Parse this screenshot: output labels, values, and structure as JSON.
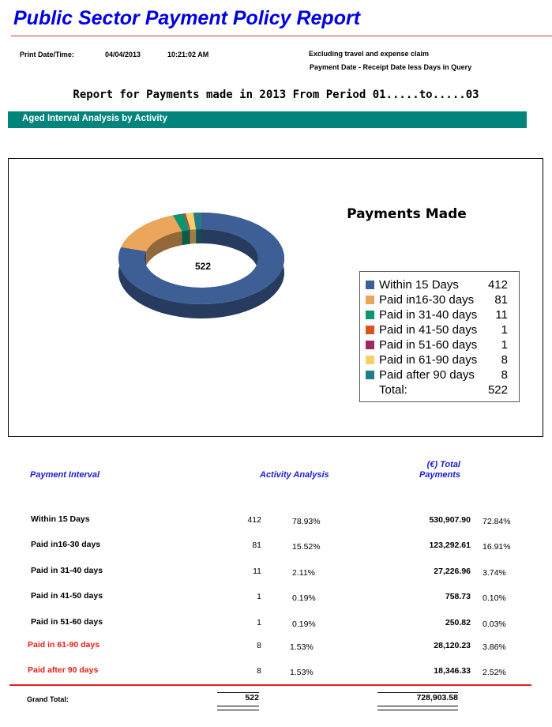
{
  "header": {
    "title": "Public Sector Payment Policy Report",
    "print_label": "Print Date/Time:",
    "print_date": "04/04/2013",
    "print_time": "10:21:02 AM",
    "note1": "Excluding travel and expense claim",
    "note2": "Payment Date - Receipt  Date less Days in Query"
  },
  "report_title": "Report for Payments made in 2013 From Period 01.....to.....03",
  "section_title": "Aged Interval Analysis by Activity",
  "chart_data": {
    "type": "pie",
    "donut": true,
    "title": "Payments Made",
    "center_label": 522,
    "categories": [
      "Within 15 Days",
      "Paid in16-30 days",
      "Paid in 31-40 days",
      "Paid in 41-50 days",
      "Paid in 51-60 days",
      "Paid in 61-90 days",
      "Paid after 90 days"
    ],
    "values": [
      412,
      81,
      11,
      1,
      1,
      8,
      8
    ],
    "colors": [
      "#3d5f96",
      "#eca65c",
      "#0f9470",
      "#d9531e",
      "#9c2a5e",
      "#f9cf6b",
      "#227d88"
    ],
    "total_label": "Total:",
    "total": 522
  },
  "table": {
    "headers": [
      "Payment Interval",
      "Activity Analysis",
      "(€) Total Payments"
    ],
    "rows": [
      [
        "Within 15 Days",
        "412",
        "78.93%",
        "530,907.90",
        "72.84%"
      ],
      [
        "Paid in16-30 days",
        "81",
        "15.52%",
        "123,292.61",
        "16.91%"
      ],
      [
        "Paid in 31-40 days",
        "11",
        "2.11%",
        "27,226.96",
        "3.74%"
      ],
      [
        "Paid in 41-50 days",
        "1",
        "0.19%",
        "758.73",
        "0.10%"
      ],
      [
        "Paid in 51-60 days",
        "1",
        "0.19%",
        "250.82",
        "0.03%"
      ],
      [
        "Paid in 61-90 days",
        "8",
        "1.53%",
        "28,120.23",
        "3.86%"
      ],
      [
        "Paid after 90 days",
        "8",
        "1.53%",
        "18,346.33",
        "2.52%"
      ]
    ],
    "total_label": "Grand Total:",
    "total_count": "522",
    "total_amount": "728,903.58"
  }
}
